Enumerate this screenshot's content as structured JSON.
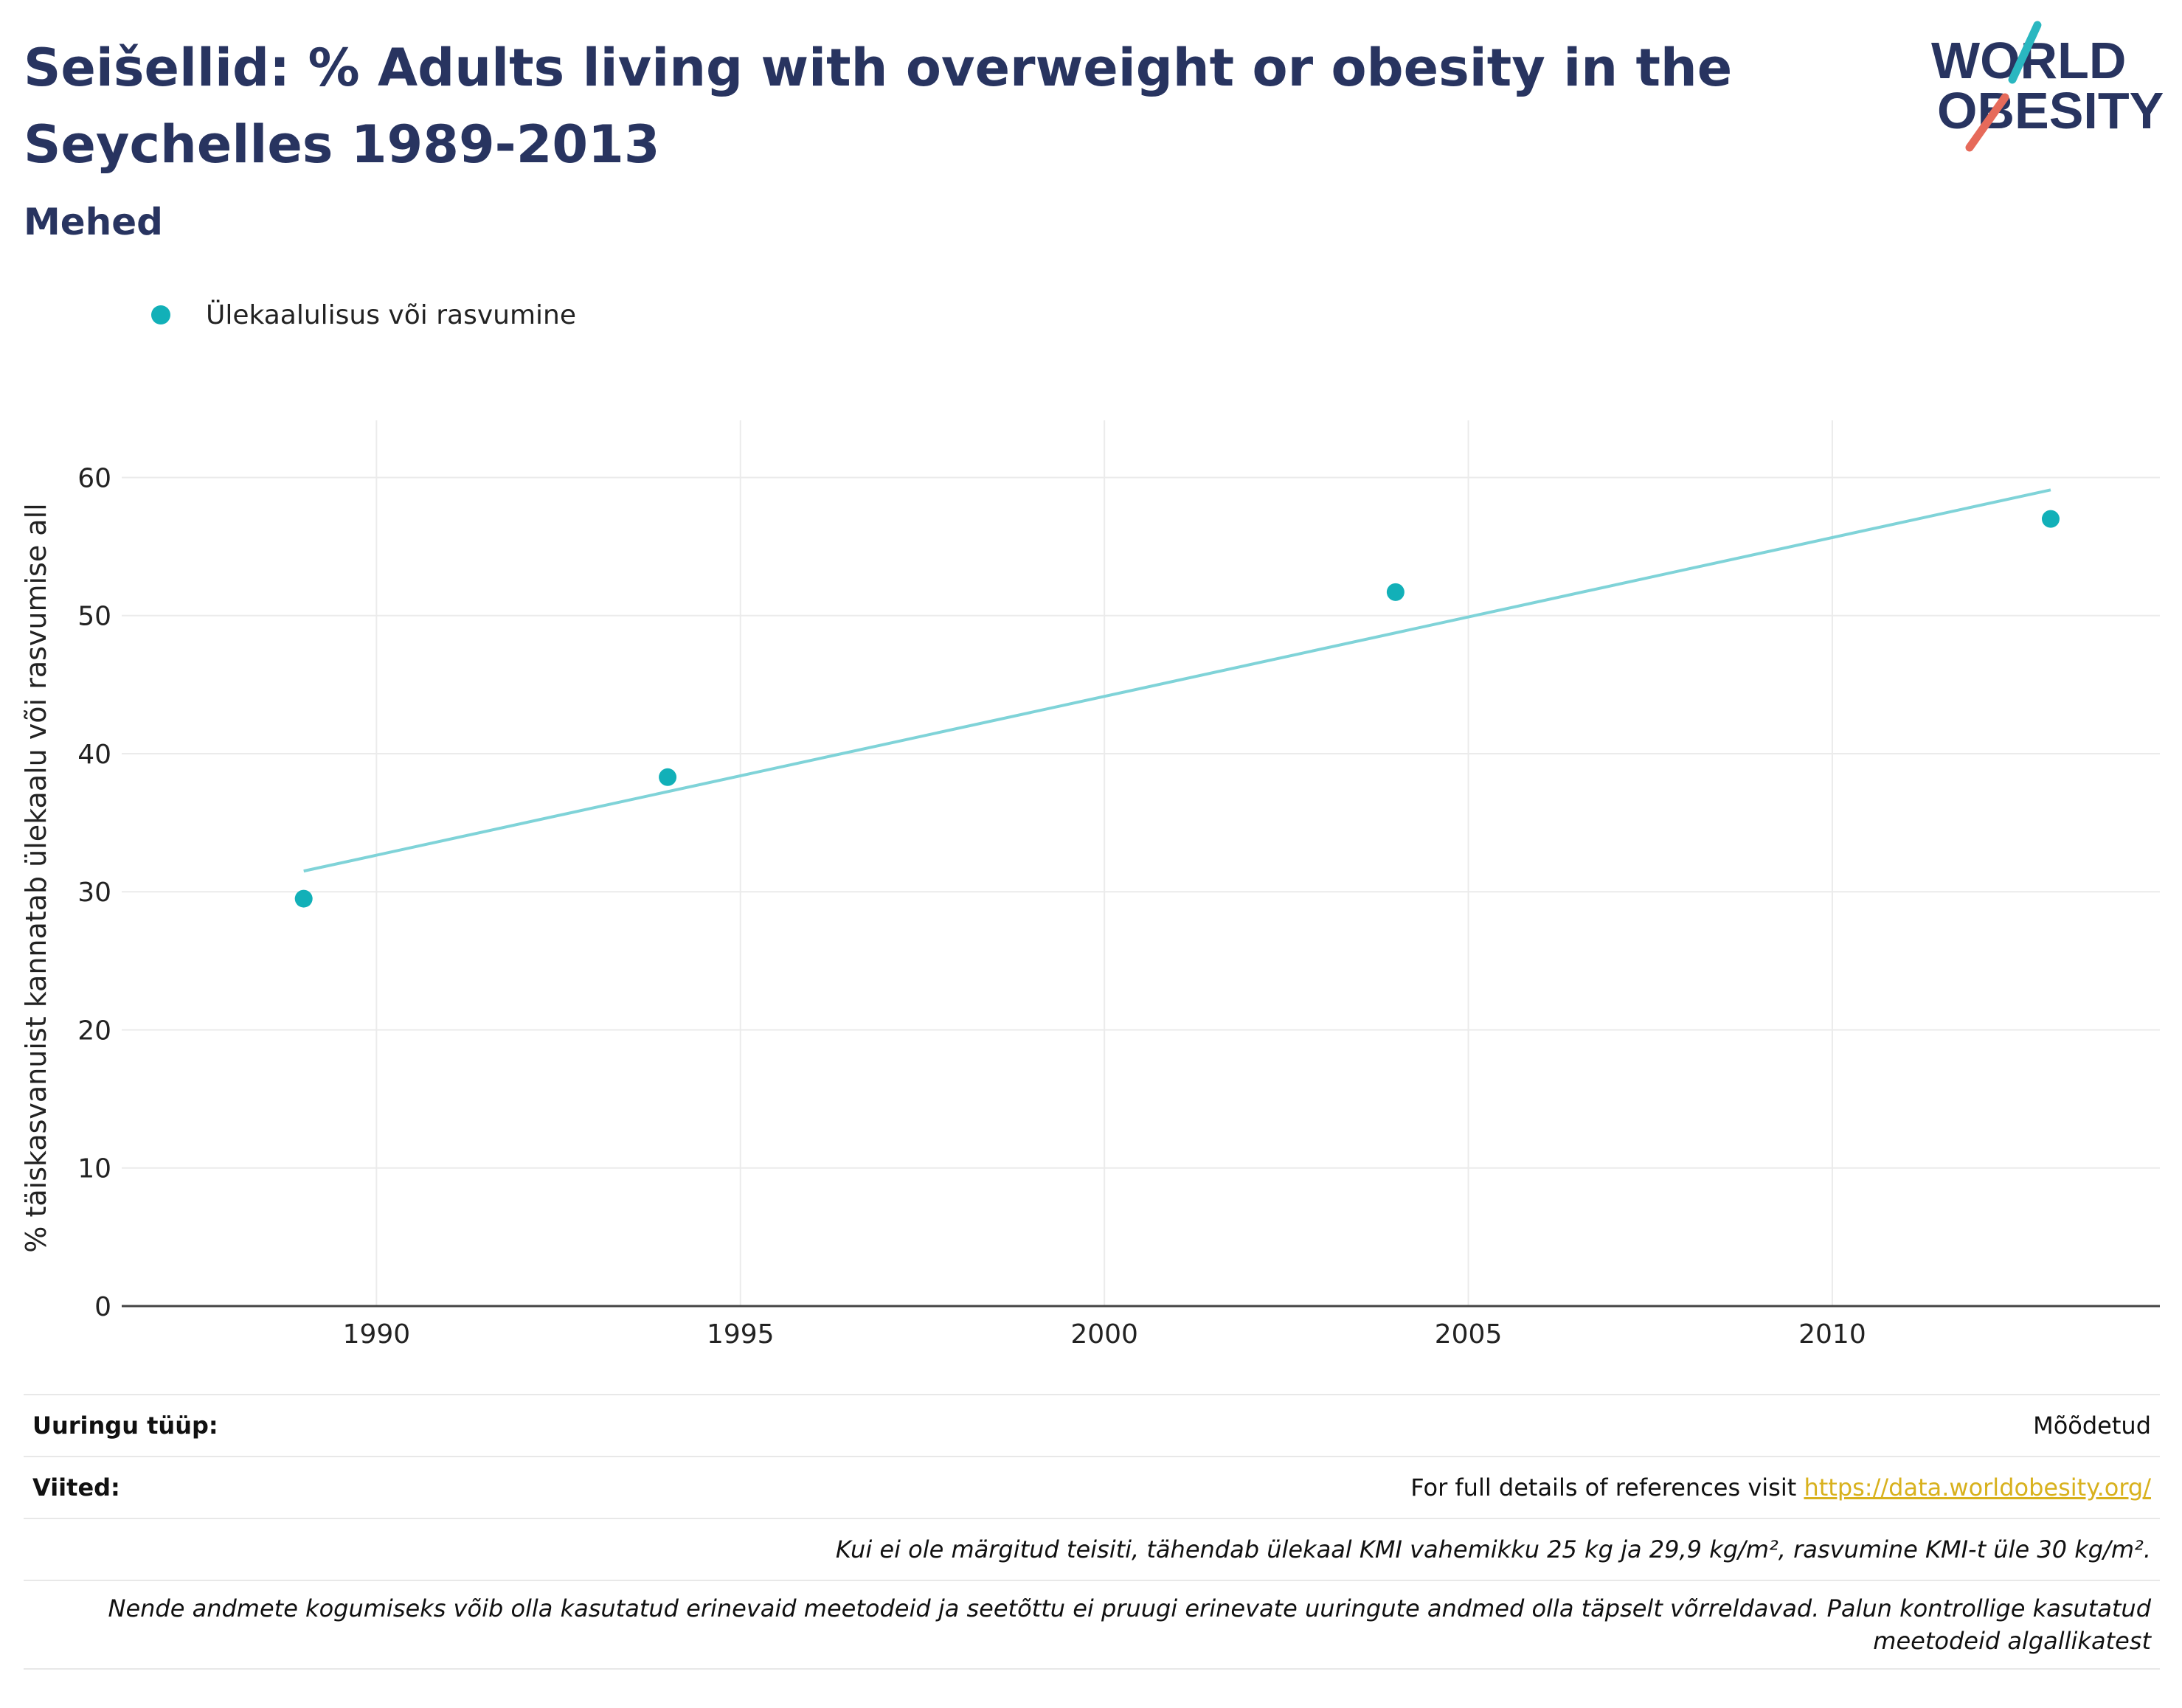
{
  "header": {
    "title": "Seišellid: % Adults living with overweight or obesity in the Seychelles 1989-2013",
    "subtitle": "Mehed"
  },
  "logo": {
    "line1": "WORLD",
    "line2": "OBESITY",
    "color_text": "#283460",
    "color_slash_teal": "#2ab7c0",
    "color_slash_red": "#e66a5a"
  },
  "legend": {
    "items": [
      {
        "label": "Ülekaalulisus või rasvumine",
        "color": "#12b0b8"
      }
    ]
  },
  "chart_data": {
    "type": "scatter",
    "title": "",
    "xlabel": "",
    "ylabel": "% täiskasvanuist kannatab ülekaalu või rasvumise all",
    "xlim": [
      1986.5,
      2014.5
    ],
    "ylim": [
      0,
      62
    ],
    "x_ticks": [
      1990,
      1995,
      2000,
      2005,
      2010
    ],
    "y_ticks": [
      0,
      10,
      20,
      30,
      40,
      50,
      60
    ],
    "grid": true,
    "series": [
      {
        "name": "Ülekaalulisus või rasvumine",
        "color": "#12b0b8",
        "points": [
          {
            "x": 1989,
            "y": 29.5
          },
          {
            "x": 1994,
            "y": 38.3
          },
          {
            "x": 2004,
            "y": 51.7
          },
          {
            "x": 2013,
            "y": 57.0
          }
        ]
      }
    ],
    "trendline": {
      "color": "#7fd3d8",
      "points": [
        {
          "x": 1989,
          "y": 31.5
        },
        {
          "x": 2013,
          "y": 59.1
        }
      ]
    }
  },
  "footer": {
    "survey_type_label": "Uuringu tüüp:",
    "survey_type_value": "Mõõdetud",
    "references_label": "Viited:",
    "references_text": "For full details of references visit ",
    "references_link": "https://data.worldobesity.org/",
    "note_definition": "Kui ei ole märgitud teisiti, tähendab ülekaal KMI vahemikku 25 kg ja 29,9 kg/m², rasvumine KMI-t üle 30 kg/m².",
    "note_methods": "Nende andmete kogumiseks võib olla kasutatud erinevaid meetodeid ja seetõttu ei pruugi erinevate uuringute andmed olla täpselt võrreldavad. Palun kontrollige kasutatud meetodeid algallikatest"
  }
}
